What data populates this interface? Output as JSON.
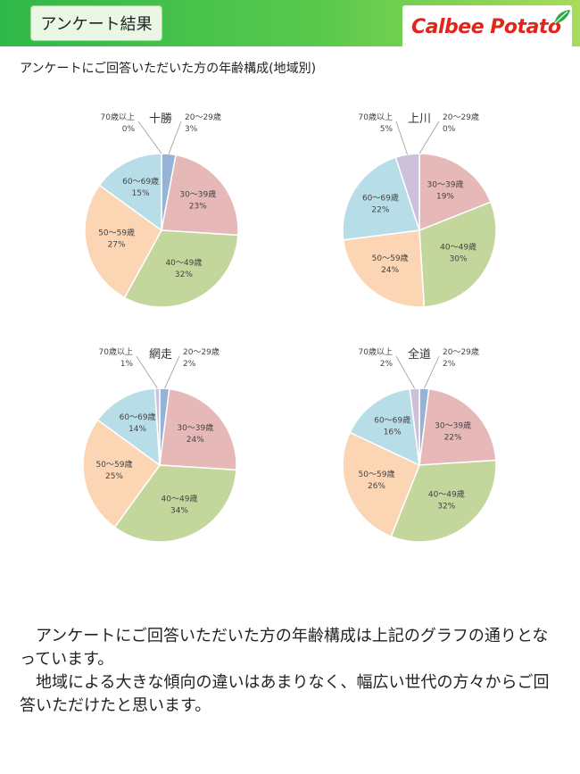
{
  "header": {
    "title": "アンケート結果",
    "logo_text": "Calbee Potato"
  },
  "subtitle": "アンケートにご回答いただいた方の年齢構成(地域別)",
  "colors": {
    "20-29": "#95b3d7",
    "30-39": "#e6b9b8",
    "40-49": "#c3d69b",
    "50-59": "#fcd5b5",
    "60-69": "#b7dee8",
    "70+": "#ccc0da"
  },
  "chart_data": [
    {
      "type": "pie",
      "title": "十勝",
      "categories": [
        "20～29歳",
        "30～39歳",
        "40～49歳",
        "50～59歳",
        "60～69歳",
        "70歳以上"
      ],
      "values": [
        3,
        23,
        32,
        27,
        15,
        0
      ],
      "labels": [
        "3%",
        "23%",
        "32%",
        "27%",
        "15%",
        "0%"
      ]
    },
    {
      "type": "pie",
      "title": "上川",
      "categories": [
        "20～29歳",
        "30～39歳",
        "40～49歳",
        "50～59歳",
        "60～69歳",
        "70歳以上"
      ],
      "values": [
        0,
        19,
        30,
        24,
        22,
        5
      ],
      "labels": [
        "0%",
        "19%",
        "30%",
        "24%",
        "22%",
        "5%"
      ]
    },
    {
      "type": "pie",
      "title": "網走",
      "categories": [
        "20～29歳",
        "30～39歳",
        "40～49歳",
        "50～59歳",
        "60～69歳",
        "70歳以上"
      ],
      "values": [
        2,
        24,
        34,
        25,
        14,
        1
      ],
      "labels": [
        "2%",
        "24%",
        "34%",
        "25%",
        "14%",
        "1%"
      ]
    },
    {
      "type": "pie",
      "title": "全道",
      "categories": [
        "20～29歳",
        "30～39歳",
        "40～49歳",
        "50～59歳",
        "60～69歳",
        "70歳以上"
      ],
      "values": [
        2,
        22,
        32,
        26,
        16,
        2
      ],
      "labels": [
        "2%",
        "22%",
        "32%",
        "26%",
        "16%",
        "2%"
      ]
    }
  ],
  "body": {
    "paragraph1": "　アンケートにご回答いただいた方の年齢構成は上記のグラフの通りとなっています。",
    "paragraph2": "　地域による大きな傾向の違いはあまりなく、幅広い世代の方々からご回答いただけたと思います。"
  }
}
